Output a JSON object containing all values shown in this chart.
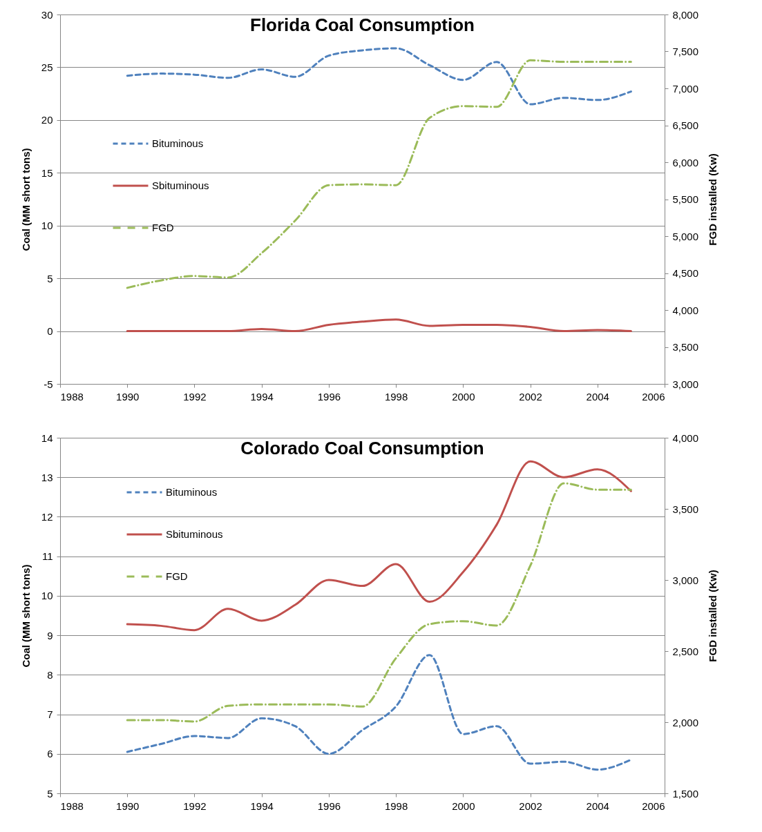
{
  "chart_data": [
    {
      "type": "line",
      "title": "Florida Coal Consumption",
      "ylabel": "Coal (MM short tons)",
      "y2label": "FGD installed (Kw)",
      "x": [
        1990,
        1991,
        1992,
        1993,
        1994,
        1995,
        1996,
        1997,
        1998,
        1999,
        2000,
        2001,
        2002,
        2003,
        2004,
        2005
      ],
      "series": [
        {
          "name": "Bituminous",
          "color": "#4f81bd",
          "line_style": "dashed",
          "values": [
            24.2,
            24.4,
            24.3,
            24.0,
            24.8,
            24.1,
            26.1,
            26.6,
            26.8,
            25.2,
            23.8,
            25.5,
            21.5,
            22.1,
            21.9,
            22.7
          ]
        },
        {
          "name": "Sbituminous",
          "color": "#c0504d",
          "line_style": "solid",
          "values": [
            0,
            0,
            0,
            0,
            0.2,
            0,
            0.6,
            0.9,
            1.1,
            0.5,
            0.6,
            0.6,
            0.4,
            0,
            0.1,
            0
          ]
        },
        {
          "name": "FGD",
          "color": "#9bbb59",
          "line_style": "dashdot",
          "axis": "y2",
          "values": [
            4300,
            4400,
            4460,
            4440,
            4770,
            5210,
            5690,
            5700,
            5690,
            6600,
            6760,
            6750,
            7380,
            7360,
            7360,
            7360
          ]
        }
      ],
      "xlim": [
        1988,
        2006
      ],
      "xticks": [
        1988,
        1990,
        1992,
        1994,
        1996,
        1998,
        2000,
        2002,
        2004,
        2006
      ],
      "ylim": [
        -5,
        30
      ],
      "yticks": [
        -5,
        0,
        5,
        10,
        15,
        20,
        25,
        30
      ],
      "y2lim": [
        3000,
        8000
      ],
      "y2ticks": [
        {
          "value": 3000,
          "label": "3,000"
        },
        {
          "value": 3500,
          "label": "3,500"
        },
        {
          "value": 4000,
          "label": "4,000"
        },
        {
          "value": 4500,
          "label": "4,500"
        },
        {
          "value": 5000,
          "label": "5,000"
        },
        {
          "value": 5500,
          "label": "5,500"
        },
        {
          "value": 6000,
          "label": "6,000"
        },
        {
          "value": 6500,
          "label": "6,500"
        },
        {
          "value": 7000,
          "label": "7,000"
        },
        {
          "value": 7500,
          "label": "7,500"
        },
        {
          "value": 8000,
          "label": "8,000"
        }
      ],
      "grid": "y",
      "legend": "top left"
    },
    {
      "type": "line",
      "title": "Colorado Coal Consumption",
      "ylabel": "Coal (MM short tons)",
      "y2label": "FGD installed (Kw)",
      "x": [
        1990,
        1991,
        1992,
        1993,
        1994,
        1995,
        1996,
        1997,
        1998,
        1999,
        2000,
        2001,
        2002,
        2003,
        2004,
        2005
      ],
      "series": [
        {
          "name": "Bituminous",
          "color": "#4f81bd",
          "line_style": "dashed",
          "values": [
            6.05,
            6.25,
            6.45,
            6.4,
            6.9,
            6.7,
            6.0,
            6.6,
            7.2,
            8.5,
            6.5,
            6.7,
            5.75,
            5.8,
            5.6,
            5.85
          ]
        },
        {
          "name": "Sbituminous",
          "color": "#c0504d",
          "line_style": "solid",
          "values": [
            9.28,
            9.24,
            9.13,
            9.67,
            9.37,
            9.77,
            10.4,
            10.25,
            10.8,
            9.85,
            10.6,
            11.8,
            13.4,
            13.0,
            13.2,
            12.65
          ]
        },
        {
          "name": "FGD",
          "color": "#9bbb59",
          "line_style": "dashdot",
          "axis": "y2",
          "values": [
            2015,
            2015,
            2005,
            2115,
            2125,
            2125,
            2125,
            2110,
            2450,
            2690,
            2710,
            2680,
            3100,
            3680,
            3635,
            3635
          ]
        }
      ],
      "xlim": [
        1988,
        2006
      ],
      "xticks": [
        1988,
        1990,
        1992,
        1994,
        1996,
        1998,
        2000,
        2002,
        2004,
        2006
      ],
      "ylim": [
        5,
        14
      ],
      "yticks": [
        5,
        6,
        7,
        8,
        9,
        10,
        11,
        12,
        13,
        14
      ],
      "y2lim": [
        1500,
        4000
      ],
      "y2ticks": [
        {
          "value": 1500,
          "label": "1,500"
        },
        {
          "value": 2000,
          "label": "2,000"
        },
        {
          "value": 2500,
          "label": "2,500"
        },
        {
          "value": 3000,
          "label": "3,000"
        },
        {
          "value": 3500,
          "label": "3,500"
        },
        {
          "value": 4000,
          "label": "4,000"
        }
      ],
      "grid": "y",
      "legend": "top left"
    }
  ]
}
